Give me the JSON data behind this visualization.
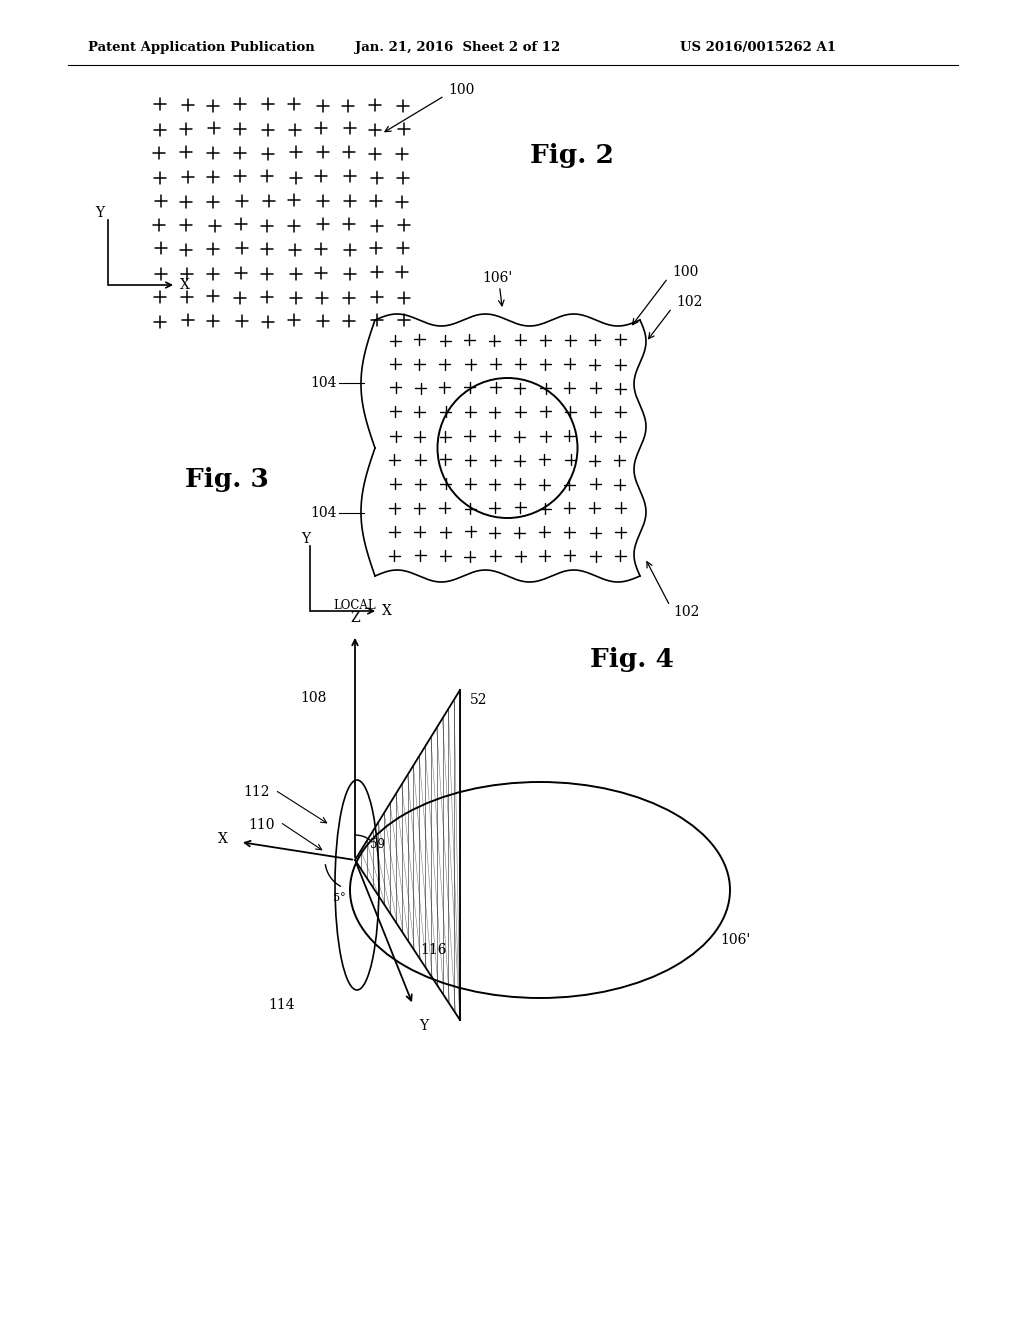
{
  "bg_color": "#ffffff",
  "header_left": "Patent Application Publication",
  "header_mid": "Jan. 21, 2016  Sheet 2 of 12",
  "header_right": "US 2016/0015262 A1",
  "fig2_label": "Fig. 2",
  "fig3_label": "Fig. 3",
  "fig4_label": "Fig. 4"
}
